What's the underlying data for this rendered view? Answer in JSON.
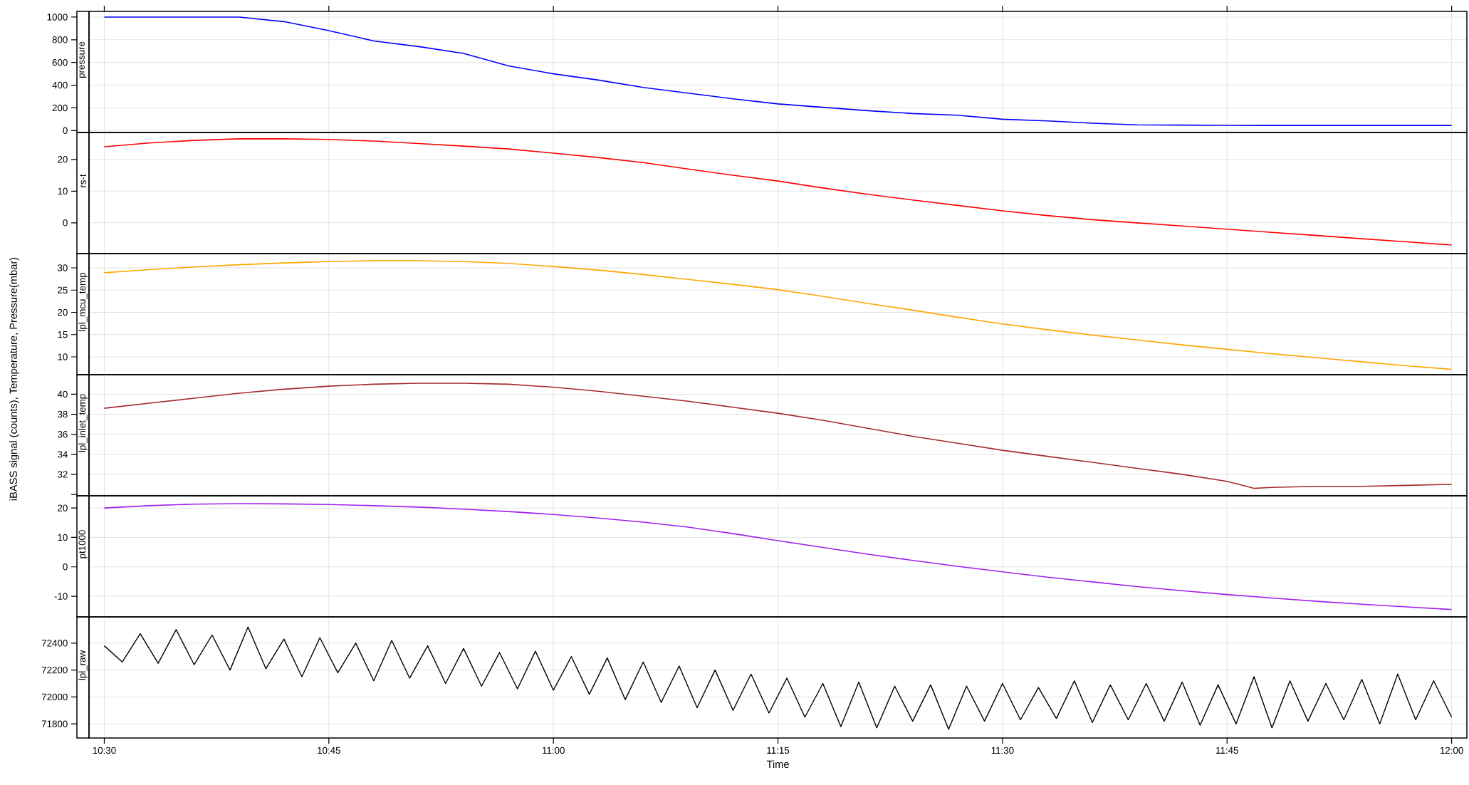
{
  "chart_data": [
    {
      "type": "line",
      "title": "pressure",
      "grid": true,
      "tick_labels": "y",
      "xlim": [
        10.483,
        12.017
      ],
      "xticks": [
        {
          "value": 10.5,
          "label": null
        },
        {
          "value": 10.75,
          "label": null
        },
        {
          "value": 11.0,
          "label": null
        },
        {
          "value": 11.25,
          "label": null
        },
        {
          "value": 11.5,
          "label": null
        },
        {
          "value": 11.75,
          "label": null
        },
        {
          "value": 12.0,
          "label": null
        }
      ],
      "ylim": [
        -17,
        1050
      ],
      "yticks": [
        0,
        200,
        400,
        600,
        800,
        1000
      ],
      "x": [
        10.5,
        10.55,
        10.6,
        10.65,
        10.7,
        10.75,
        10.8,
        10.85,
        10.9,
        10.95,
        11.0,
        11.05,
        11.1,
        11.15,
        11.2,
        11.25,
        11.3,
        11.35,
        11.4,
        11.45,
        11.5,
        11.55,
        11.6,
        11.65,
        11.7,
        11.75,
        11.8,
        11.85,
        11.9,
        11.95,
        12.0
      ],
      "series": [
        {
          "color": "#0000ff",
          "values": [
            1000,
            1000,
            1000,
            1000,
            960,
            880,
            790,
            740,
            680,
            570,
            500,
            445,
            380,
            330,
            280,
            235,
            205,
            175,
            150,
            135,
            100,
            85,
            65,
            50,
            48,
            46,
            45,
            45,
            45,
            45,
            45
          ]
        }
      ]
    },
    {
      "type": "line",
      "title": "rs-t",
      "grid": true,
      "tick_labels": "y",
      "xlim": [
        10.483,
        12.017
      ],
      "xticks": [
        {
          "value": 10.5,
          "label": null
        },
        {
          "value": 10.75,
          "label": null
        },
        {
          "value": 11.0,
          "label": null
        },
        {
          "value": 11.25,
          "label": null
        },
        {
          "value": 11.5,
          "label": null
        },
        {
          "value": 11.75,
          "label": null
        },
        {
          "value": 12.0,
          "label": null
        }
      ],
      "ylim": [
        -9.7,
        28.5
      ],
      "yticks": [
        0,
        10,
        20
      ],
      "x": [
        10.5,
        10.55,
        10.6,
        10.65,
        10.7,
        10.75,
        10.8,
        10.85,
        10.9,
        10.95,
        11.0,
        11.05,
        11.1,
        11.15,
        11.2,
        11.25,
        11.3,
        11.35,
        11.4,
        11.45,
        11.5,
        11.55,
        11.6,
        11.65,
        11.7,
        11.75,
        11.8,
        11.85,
        11.9,
        11.95,
        12.0
      ],
      "series": [
        {
          "color": "#ff0000",
          "values": [
            24,
            25.2,
            26,
            26.5,
            26.5,
            26.3,
            25.8,
            25,
            24.2,
            23.3,
            22,
            20.6,
            19,
            17,
            15,
            13.2,
            11,
            9,
            7.2,
            5.5,
            3.8,
            2.3,
            1,
            0,
            -1,
            -2,
            -3,
            -4,
            -5,
            -6,
            -7
          ]
        }
      ]
    },
    {
      "type": "line",
      "title": "lpl_mcu_temp",
      "grid": true,
      "tick_labels": "y",
      "xlim": [
        10.483,
        12.017
      ],
      "xticks": [
        {
          "value": 10.5,
          "label": null
        },
        {
          "value": 10.75,
          "label": null
        },
        {
          "value": 11.0,
          "label": null
        },
        {
          "value": 11.25,
          "label": null
        },
        {
          "value": 11.5,
          "label": null
        },
        {
          "value": 11.75,
          "label": null
        },
        {
          "value": 12.0,
          "label": null
        }
      ],
      "ylim": [
        6.0,
        33.2
      ],
      "yticks": [
        10,
        15,
        20,
        25,
        30
      ],
      "x": [
        10.5,
        10.55,
        10.6,
        10.65,
        10.7,
        10.75,
        10.8,
        10.85,
        10.9,
        10.95,
        11.0,
        11.05,
        11.1,
        11.15,
        11.2,
        11.25,
        11.3,
        11.35,
        11.4,
        11.45,
        11.5,
        11.55,
        11.6,
        11.65,
        11.7,
        11.75,
        11.8,
        11.85,
        11.9,
        11.95,
        12.0
      ],
      "series": [
        {
          "color": "#ffa500",
          "values": [
            28.9,
            29.6,
            30.2,
            30.7,
            31.1,
            31.4,
            31.6,
            31.6,
            31.4,
            31,
            30.3,
            29.5,
            28.5,
            27.4,
            26.3,
            25.1,
            23.6,
            22,
            20.5,
            18.9,
            17.4,
            16.1,
            14.9,
            13.8,
            12.7,
            11.7,
            10.7,
            9.8,
            8.9,
            8,
            7.2
          ]
        }
      ]
    },
    {
      "type": "line",
      "title": "lpl_inlet_temp",
      "ylabel": "iBASS signal (counts), Temperature, Pressure(mbar)",
      "grid": true,
      "tick_labels": "y",
      "xlim": [
        10.483,
        12.017
      ],
      "xticks": [
        {
          "value": 10.5,
          "label": null
        },
        {
          "value": 10.75,
          "label": null
        },
        {
          "value": 11.0,
          "label": null
        },
        {
          "value": 11.25,
          "label": null
        },
        {
          "value": 11.5,
          "label": null
        },
        {
          "value": 11.75,
          "label": null
        },
        {
          "value": 12.0,
          "label": null
        }
      ],
      "ylim": [
        29.86,
        41.95
      ],
      "yticks": [
        {
          "value": 30,
          "label": null
        },
        32,
        34,
        36,
        38,
        40
      ],
      "series": [
        {
          "color": "#a52a2a",
          "x": [
            10.5,
            10.55,
            10.6,
            10.65,
            10.7,
            10.75,
            10.8,
            10.85,
            10.9,
            10.95,
            11.0,
            11.05,
            11.1,
            11.15,
            11.2,
            11.25,
            11.3,
            11.35,
            11.4,
            11.45,
            11.5,
            11.55,
            11.6,
            11.65,
            11.7,
            11.75,
            11.78,
            11.8,
            11.85,
            11.9,
            11.95,
            12.0
          ],
          "values": [
            38.6,
            39.1,
            39.6,
            40.1,
            40.5,
            40.8,
            41,
            41.1,
            41.1,
            41,
            40.7,
            40.3,
            39.8,
            39.3,
            38.7,
            38.1,
            37.4,
            36.6,
            35.8,
            35.1,
            34.4,
            33.8,
            33.2,
            32.6,
            32,
            31.3,
            30.6,
            30.7,
            30.8,
            30.8,
            30.9,
            31
          ]
        }
      ]
    },
    {
      "type": "line",
      "title": "pt1000",
      "grid": true,
      "tick_labels": "y",
      "xlim": [
        10.483,
        12.017
      ],
      "xticks": [
        {
          "value": 10.5,
          "label": null
        },
        {
          "value": 10.75,
          "label": null
        },
        {
          "value": 11.0,
          "label": null
        },
        {
          "value": 11.25,
          "label": null
        },
        {
          "value": 11.5,
          "label": null
        },
        {
          "value": 11.75,
          "label": null
        },
        {
          "value": 12.0,
          "label": null
        }
      ],
      "ylim": [
        -17.0,
        24.15
      ],
      "yticks": [
        -10,
        0,
        10,
        20
      ],
      "x": [
        10.5,
        10.55,
        10.6,
        10.65,
        10.7,
        10.75,
        10.8,
        10.85,
        10.9,
        10.95,
        11.0,
        11.05,
        11.1,
        11.15,
        11.2,
        11.25,
        11.3,
        11.35,
        11.4,
        11.45,
        11.5,
        11.55,
        11.6,
        11.65,
        11.7,
        11.75,
        11.8,
        11.85,
        11.9,
        11.95,
        12.0
      ],
      "series": [
        {
          "color": "#a020f0",
          "values": [
            20,
            20.8,
            21.3,
            21.5,
            21.4,
            21.2,
            20.8,
            20.3,
            19.6,
            18.8,
            17.8,
            16.6,
            15.2,
            13.5,
            11.3,
            8.9,
            6.6,
            4.3,
            2.2,
            0.2,
            -1.7,
            -3.5,
            -5.1,
            -6.7,
            -8.1,
            -9.4,
            -10.6,
            -11.7,
            -12.7,
            -13.6,
            -14.5
          ]
        }
      ]
    },
    {
      "type": "line",
      "title": "lpl_raw",
      "xlabel": "Time",
      "grid": true,
      "xlim": [
        10.483,
        12.017
      ],
      "xticks": [
        {
          "value": 10.5,
          "label": "10:30"
        },
        {
          "value": 10.75,
          "label": "10:45"
        },
        {
          "value": 11.0,
          "label": "11:00"
        },
        {
          "value": 11.25,
          "label": "11:15"
        },
        {
          "value": 11.5,
          "label": "11:30"
        },
        {
          "value": 11.75,
          "label": "11:45"
        },
        {
          "value": 12.0,
          "label": "12:00"
        }
      ],
      "ylim": [
        71695,
        72595
      ],
      "yticks": [
        71800,
        72000,
        72200,
        72400
      ],
      "series": [
        {
          "color": "#000000",
          "x": [
            10.5,
            10.52,
            10.54,
            10.56,
            10.58,
            10.6,
            10.62,
            10.64,
            10.66,
            10.68,
            10.7,
            10.72,
            10.74,
            10.76,
            10.78,
            10.8,
            10.82,
            10.84,
            10.86,
            10.88,
            10.9,
            10.92,
            10.94,
            10.96,
            10.98,
            11.0,
            11.02,
            11.04,
            11.06,
            11.08,
            11.1,
            11.12,
            11.14,
            11.16,
            11.18,
            11.2,
            11.22,
            11.24,
            11.26,
            11.28,
            11.3,
            11.32,
            11.34,
            11.36,
            11.38,
            11.4,
            11.42,
            11.44,
            11.46,
            11.48,
            11.5,
            11.52,
            11.54,
            11.56,
            11.58,
            11.6,
            11.62,
            11.64,
            11.66,
            11.68,
            11.7,
            11.72,
            11.74,
            11.76,
            11.78,
            11.8,
            11.82,
            11.84,
            11.86,
            11.88,
            11.9,
            11.92,
            11.94,
            11.96,
            11.98,
            12.0
          ],
          "values": [
            72380,
            72260,
            72470,
            72250,
            72500,
            72240,
            72460,
            72200,
            72520,
            72210,
            72430,
            72150,
            72440,
            72180,
            72400,
            72120,
            72420,
            72140,
            72380,
            72100,
            72360,
            72080,
            72330,
            72060,
            72340,
            72050,
            72300,
            72020,
            72290,
            71980,
            72260,
            71960,
            72230,
            71920,
            72200,
            71900,
            72170,
            71880,
            72140,
            71850,
            72100,
            71780,
            72110,
            71770,
            72080,
            71820,
            72090,
            71760,
            72080,
            71820,
            72100,
            71830,
            72070,
            71840,
            72120,
            71810,
            72090,
            71830,
            72100,
            71820,
            72110,
            71790,
            72090,
            71800,
            72150,
            71770,
            72120,
            71820,
            72100,
            71830,
            72130,
            71800,
            72170,
            71830,
            72120,
            71850
          ]
        }
      ]
    }
  ]
}
